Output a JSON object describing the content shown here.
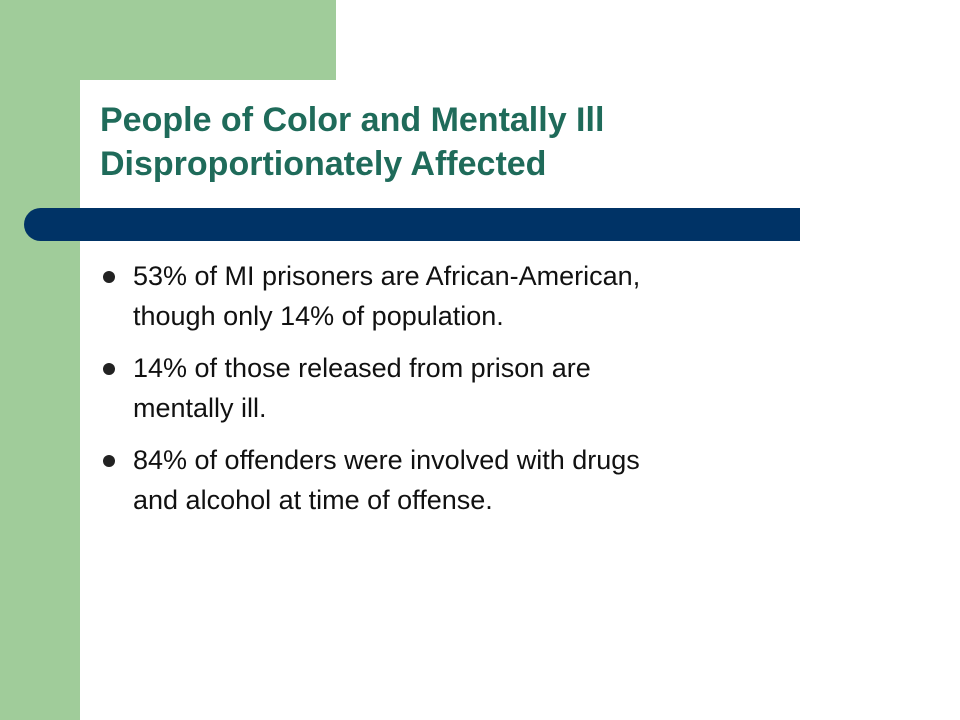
{
  "slide": {
    "title_lines": [
      "People of Color and Mentally Ill",
      "Disproportionately Affected"
    ],
    "bullets": [
      {
        "lines": [
          "53% of MI prisoners are African-American,",
          "though only 14% of population."
        ]
      },
      {
        "lines": [
          "14% of those released from prison are",
          "mentally ill."
        ]
      },
      {
        "lines": [
          "84% of offenders were involved with drugs",
          "and alcohol at time of offense."
        ]
      }
    ]
  },
  "colors": {
    "accent_green": "#a0cc9a",
    "title_color": "#1f6b5a",
    "bar_navy": "#003366",
    "body_text": "#111111"
  }
}
